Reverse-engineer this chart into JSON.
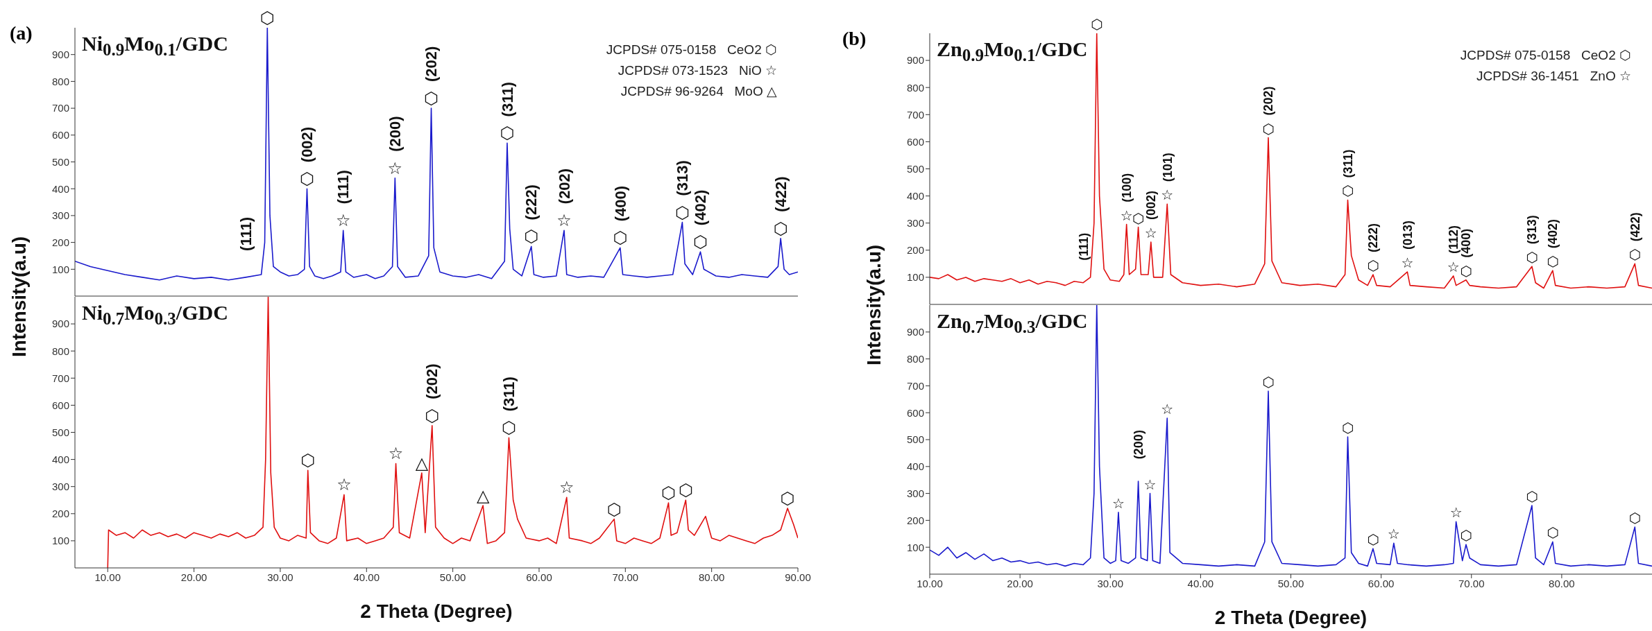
{
  "chart_data": [
    {
      "type": "line",
      "title": "Ni$_{0.9}$Mo$_{0.1}$/GDC",
      "ylabel": "Intensity(a.u)",
      "xlim": [
        6.2,
        90
      ],
      "ylim": [
        0,
        1000
      ],
      "yticks": [
        100,
        200,
        300,
        400,
        500,
        600,
        700,
        800,
        900
      ],
      "tick_labels": "y",
      "x": [
        6.2,
        8,
        10,
        12,
        14,
        16,
        18,
        20,
        22,
        24,
        26,
        27.8,
        28.2,
        28.5,
        28.8,
        29.2,
        30,
        31,
        32,
        32.8,
        33.1,
        33.4,
        34,
        35,
        36,
        37,
        37.3,
        37.6,
        38.5,
        40,
        41,
        42,
        43,
        43.3,
        43.6,
        44.5,
        46,
        47.2,
        47.5,
        47.8,
        48.5,
        50,
        51.5,
        53,
        54.5,
        56,
        56.3,
        56.6,
        57,
        58,
        59.1,
        59.4,
        60.5,
        62,
        62.9,
        63.2,
        64.5,
        66,
        67.5,
        69.4,
        69.7,
        71,
        72.5,
        74,
        75.5,
        76.6,
        76.9,
        77.8,
        78.7,
        79.1,
        80.5,
        82,
        83.5,
        85,
        86.5,
        87.7,
        88,
        88.4,
        89,
        90
      ],
      "series": [
        {
          "color": "#1a1acc",
          "values": [
            130,
            110,
            95,
            80,
            70,
            60,
            75,
            65,
            70,
            60,
            70,
            80,
            200,
            1000,
            300,
            110,
            90,
            75,
            80,
            100,
            400,
            110,
            75,
            65,
            75,
            90,
            245,
            90,
            70,
            80,
            65,
            75,
            110,
            440,
            110,
            70,
            75,
            150,
            700,
            180,
            90,
            75,
            70,
            80,
            65,
            130,
            570,
            250,
            100,
            75,
            185,
            80,
            70,
            75,
            245,
            80,
            70,
            75,
            70,
            180,
            80,
            75,
            70,
            75,
            80,
            275,
            120,
            80,
            165,
            100,
            75,
            70,
            80,
            75,
            70,
            110,
            215,
            100,
            80,
            90
          ]
        }
      ],
      "annotations": [
        "(a)",
        "JCPDS# 075-0158   CeO2 ⬡",
        "JCPDS# 073-1523   NiO ☆",
        "JCPDS# 96-9264   MoO △",
        {
          "text": "⬡",
          "x": 28.5,
          "y": 1000
        },
        {
          "text": "(111)",
          "x": 26,
          "y": 70
        },
        {
          "text": "⬡",
          "x": 33.1,
          "y": 400
        },
        {
          "text": "(002)",
          "x": 33.1,
          "y": 400
        },
        {
          "text": "☆",
          "x": 37.3,
          "y": 245
        },
        {
          "text": "(111)",
          "x": 37.3,
          "y": 245
        },
        {
          "text": "☆",
          "x": 43.3,
          "y": 440
        },
        {
          "text": "(200)",
          "x": 43.3,
          "y": 440
        },
        {
          "text": "⬡",
          "x": 47.5,
          "y": 700
        },
        {
          "text": "(202)",
          "x": 47.5,
          "y": 700
        },
        {
          "text": "⬡",
          "x": 56.3,
          "y": 570
        },
        {
          "text": "(311)",
          "x": 56.3,
          "y": 570
        },
        {
          "text": "⬡",
          "x": 59.1,
          "y": 185
        },
        {
          "text": "(222)",
          "x": 59.1,
          "y": 185
        },
        {
          "text": "☆",
          "x": 62.9,
          "y": 245
        },
        {
          "text": "(202)",
          "x": 62.9,
          "y": 245
        },
        {
          "text": "⬡",
          "x": 69.4,
          "y": 180
        },
        {
          "text": "(400)",
          "x": 69.4,
          "y": 180
        },
        {
          "text": "⬡",
          "x": 76.6,
          "y": 275
        },
        {
          "text": "(313)",
          "x": 76.6,
          "y": 275
        },
        {
          "text": "⬡",
          "x": 78.7,
          "y": 165
        },
        {
          "text": "(402)",
          "x": 78.7,
          "y": 165
        },
        {
          "text": "⬡",
          "x": 88,
          "y": 215
        },
        {
          "text": "(422)",
          "x": 88,
          "y": 215
        }
      ]
    },
    {
      "type": "line",
      "title": "Ni$_{0.7}$Mo$_{0.3}$/GDC",
      "xlabel": "2 Theta (Degree)",
      "xlim": [
        6.2,
        90
      ],
      "xticks": [
        {
          "value": 10,
          "label": "10.00"
        },
        {
          "value": 20,
          "label": "20.00"
        },
        {
          "value": 30,
          "label": "30.00"
        },
        {
          "value": 40,
          "label": "40.00"
        },
        {
          "value": 50,
          "label": "50.00"
        },
        {
          "value": 60,
          "label": "60.00"
        },
        {
          "value": 70,
          "label": "70.00"
        },
        {
          "value": 80,
          "label": "80.00"
        },
        {
          "value": 90,
          "label": "90.00"
        }
      ],
      "ylim": [
        0,
        1000
      ],
      "yticks": [
        100,
        200,
        300,
        400,
        500,
        600,
        700,
        800,
        900
      ],
      "x": [
        10,
        10.1,
        11,
        12,
        13,
        14,
        15,
        16,
        17,
        18,
        19,
        20,
        21,
        22,
        23,
        24,
        25,
        26,
        27,
        28,
        28.3,
        28.6,
        28.9,
        29.3,
        30,
        31,
        32,
        33,
        33.2,
        33.5,
        34.5,
        35.5,
        36.5,
        37.4,
        37.7,
        39,
        40,
        41,
        42,
        43.1,
        43.4,
        43.8,
        45,
        46.4,
        46.8,
        47.6,
        48,
        49,
        50,
        51,
        52,
        53.5,
        54,
        55,
        56,
        56.5,
        57,
        57.5,
        58.5,
        60,
        61,
        62,
        63.2,
        63.5,
        65,
        66,
        67,
        68.7,
        69,
        70,
        71,
        72,
        73,
        74,
        75,
        75.3,
        76,
        77,
        77.3,
        78,
        79.3,
        80,
        81,
        82,
        83,
        84,
        85,
        86,
        87,
        88,
        88.8,
        89.5,
        90
      ],
      "series": [
        {
          "color": "#e01010",
          "values": [
            0,
            140,
            120,
            130,
            110,
            140,
            120,
            130,
            115,
            125,
            110,
            130,
            120,
            110,
            125,
            115,
            130,
            110,
            120,
            150,
            400,
            1000,
            350,
            150,
            110,
            100,
            120,
            110,
            360,
            130,
            100,
            90,
            110,
            270,
            100,
            110,
            90,
            100,
            110,
            150,
            385,
            130,
            110,
            350,
            130,
            525,
            150,
            110,
            90,
            110,
            100,
            230,
            90,
            100,
            130,
            480,
            250,
            180,
            110,
            100,
            110,
            90,
            260,
            110,
            100,
            90,
            110,
            180,
            100,
            90,
            110,
            100,
            90,
            110,
            240,
            120,
            130,
            250,
            140,
            120,
            190,
            110,
            100,
            120,
            110,
            100,
            90,
            110,
            120,
            140,
            220,
            160,
            110
          ]
        }
      ],
      "annotations": [
        {
          "text": "⬡",
          "x": 33.2,
          "y": 360
        },
        {
          "text": "☆",
          "x": 37.4,
          "y": 270
        },
        {
          "text": "☆",
          "x": 43.4,
          "y": 385
        },
        {
          "text": "△",
          "x": 46.4,
          "y": 350
        },
        {
          "text": "⬡",
          "x": 47.6,
          "y": 525
        },
        {
          "text": "(202)",
          "x": 47.6,
          "y": 525
        },
        {
          "text": "△",
          "x": 53.5,
          "y": 230
        },
        {
          "text": "⬡",
          "x": 56.5,
          "y": 480
        },
        {
          "text": "(311)",
          "x": 56.5,
          "y": 480
        },
        {
          "text": "☆",
          "x": 63.2,
          "y": 260
        },
        {
          "text": "⬡",
          "x": 68.7,
          "y": 180
        },
        {
          "text": "⬡",
          "x": 75,
          "y": 240
        },
        {
          "text": "⬡",
          "x": 77,
          "y": 250
        },
        {
          "text": "⬡",
          "x": 88.8,
          "y": 220
        }
      ]
    },
    {
      "type": "line",
      "title": "Zn$_{0.9}$Mo$_{0.1}$/GDC",
      "ylabel": "Intensity(a.u)",
      "xlim": [
        10,
        90
      ],
      "ylim": [
        0,
        1000
      ],
      "yticks": [
        100,
        200,
        300,
        400,
        500,
        600,
        700,
        800,
        900
      ],
      "tick_labels": "y",
      "x": [
        10,
        11,
        12,
        13,
        14,
        15,
        16,
        17,
        18,
        19,
        20,
        21,
        22,
        23,
        24,
        25,
        26,
        27,
        27.8,
        28.2,
        28.5,
        28.8,
        29.3,
        30,
        31,
        31.5,
        31.8,
        32.1,
        32.8,
        33.1,
        33.4,
        34.2,
        34.5,
        34.8,
        35.8,
        36.3,
        36.7,
        38,
        40,
        42,
        44,
        46,
        47.1,
        47.5,
        47.9,
        49,
        51,
        53,
        55,
        56,
        56.3,
        56.7,
        57.5,
        58.5,
        59.1,
        59.5,
        61,
        62.9,
        63.2,
        65,
        67,
        68,
        68.3,
        69.4,
        69.8,
        71,
        73,
        75,
        76.7,
        77.1,
        78,
        79,
        79.3,
        81,
        83,
        85,
        87,
        88.1,
        88.5,
        90
      ],
      "series": [
        {
          "color": "#e01010",
          "values": [
            100,
            95,
            110,
            90,
            100,
            85,
            95,
            90,
            85,
            95,
            80,
            90,
            75,
            85,
            80,
            70,
            85,
            80,
            100,
            300,
            1000,
            400,
            130,
            90,
            85,
            110,
            295,
            110,
            130,
            285,
            110,
            110,
            230,
            100,
            100,
            370,
            110,
            80,
            70,
            75,
            65,
            75,
            150,
            615,
            160,
            80,
            70,
            75,
            65,
            110,
            385,
            180,
            90,
            70,
            110,
            70,
            65,
            120,
            70,
            65,
            60,
            105,
            70,
            90,
            70,
            65,
            60,
            65,
            140,
            80,
            60,
            125,
            70,
            60,
            65,
            60,
            65,
            150,
            70,
            60
          ]
        }
      ],
      "annotations": [
        "(b)",
        "JCPDS# 075-0158   CeO2 ⬡",
        "JCPDS# 36-1451   ZnO ☆",
        {
          "text": "⬡",
          "x": 28.5,
          "y": 1000
        },
        {
          "text": "(111)",
          "x": 27,
          "y": 80
        },
        {
          "text": "☆",
          "x": 31.8,
          "y": 295
        },
        {
          "text": "(100)",
          "x": 31.8,
          "y": 295
        },
        {
          "text": "⬡",
          "x": 33.1,
          "y": 285
        },
        {
          "text": "☆",
          "x": 34.5,
          "y": 230
        },
        {
          "text": "(002)",
          "x": 34.5,
          "y": 230
        },
        {
          "text": "☆",
          "x": 36.3,
          "y": 370
        },
        {
          "text": "(101)",
          "x": 36.3,
          "y": 370
        },
        {
          "text": "⬡",
          "x": 47.5,
          "y": 615
        },
        {
          "text": "(202)",
          "x": 47.5,
          "y": 615
        },
        {
          "text": "⬡",
          "x": 56.3,
          "y": 385
        },
        {
          "text": "(311)",
          "x": 56.3,
          "y": 385
        },
        {
          "text": "⬡",
          "x": 59.1,
          "y": 110
        },
        {
          "text": "(222)",
          "x": 59.1,
          "y": 110
        },
        {
          "text": "☆",
          "x": 62.9,
          "y": 120
        },
        {
          "text": "(013)",
          "x": 62.9,
          "y": 120
        },
        {
          "text": "☆",
          "x": 68,
          "y": 105
        },
        {
          "text": "(112)",
          "x": 68,
          "y": 105
        },
        {
          "text": "⬡",
          "x": 69.4,
          "y": 90
        },
        {
          "text": "(400)",
          "x": 69.4,
          "y": 90
        },
        {
          "text": "⬡",
          "x": 76.7,
          "y": 140
        },
        {
          "text": "(313)",
          "x": 76.7,
          "y": 140
        },
        {
          "text": "⬡",
          "x": 79,
          "y": 125
        },
        {
          "text": "(402)",
          "x": 79,
          "y": 125
        },
        {
          "text": "⬡",
          "x": 88.1,
          "y": 150
        },
        {
          "text": "(422)",
          "x": 88.1,
          "y": 150
        }
      ]
    },
    {
      "type": "line",
      "title": "Zn$_{0.7}$Mo$_{0.3}$/GDC",
      "xlabel": "2 Theta (Degree)",
      "xlim": [
        10,
        90
      ],
      "xticks": [
        {
          "value": 10,
          "label": "10.00"
        },
        {
          "value": 20,
          "label": "20.00"
        },
        {
          "value": 30,
          "label": "30.00"
        },
        {
          "value": 40,
          "label": "40.00"
        },
        {
          "value": 50,
          "label": "50.00"
        },
        {
          "value": 60,
          "label": "60.00"
        },
        {
          "value": 70,
          "label": "70.00"
        },
        {
          "value": 80,
          "label": "80.00"
        }
      ],
      "ylim": [
        0,
        1000
      ],
      "yticks": [
        100,
        200,
        300,
        400,
        500,
        600,
        700,
        800,
        900
      ],
      "x": [
        10,
        11,
        12,
        13,
        14,
        15,
        16,
        17,
        18,
        19,
        20,
        21,
        22,
        23,
        24,
        25,
        26,
        27,
        27.8,
        28.2,
        28.5,
        28.8,
        29.3,
        30,
        30.6,
        30.9,
        31.2,
        32,
        32.8,
        33.1,
        33.4,
        34.1,
        34.4,
        34.7,
        35.5,
        36.3,
        36.6,
        38,
        40,
        42,
        44,
        46,
        47.1,
        47.5,
        47.9,
        49,
        51,
        53,
        55,
        56,
        56.3,
        56.7,
        57.5,
        58.5,
        59.1,
        59.5,
        61,
        61.4,
        61.8,
        63,
        65,
        67,
        68,
        68.3,
        69,
        69.4,
        69.8,
        71,
        73,
        75,
        76.7,
        77.1,
        78,
        79,
        79.3,
        81,
        83,
        85,
        87,
        88.1,
        88.5,
        90
      ],
      "series": [
        {
          "color": "#1a1acc",
          "values": [
            90,
            70,
            100,
            60,
            80,
            55,
            75,
            50,
            60,
            45,
            50,
            40,
            45,
            35,
            40,
            30,
            40,
            35,
            60,
            300,
            1000,
            400,
            60,
            40,
            50,
            230,
            50,
            40,
            60,
            345,
            60,
            50,
            300,
            50,
            40,
            580,
            80,
            40,
            35,
            30,
            35,
            30,
            120,
            680,
            120,
            40,
            35,
            30,
            35,
            60,
            510,
            80,
            40,
            30,
            95,
            40,
            35,
            115,
            40,
            35,
            30,
            35,
            40,
            195,
            50,
            110,
            60,
            35,
            30,
            35,
            255,
            60,
            35,
            120,
            40,
            30,
            35,
            30,
            35,
            175,
            40,
            30
          ]
        }
      ],
      "annotations": [
        {
          "text": "☆",
          "x": 30.9,
          "y": 230
        },
        {
          "text": "(200)",
          "x": 33.1,
          "y": 345
        },
        {
          "text": "☆",
          "x": 34.4,
          "y": 300
        },
        {
          "text": "☆",
          "x": 36.3,
          "y": 580
        },
        {
          "text": "⬡",
          "x": 47.5,
          "y": 680
        },
        {
          "text": "⬡",
          "x": 56.3,
          "y": 510
        },
        {
          "text": "⬡",
          "x": 59.1,
          "y": 95
        },
        {
          "text": "☆",
          "x": 61.4,
          "y": 115
        },
        {
          "text": "☆",
          "x": 68.3,
          "y": 195
        },
        {
          "text": "⬡",
          "x": 69.4,
          "y": 110
        },
        {
          "text": "⬡",
          "x": 76.7,
          "y": 255
        },
        {
          "text": "⬡",
          "x": 79,
          "y": 120
        },
        {
          "text": "⬡",
          "x": 88.1,
          "y": 175
        }
      ]
    }
  ]
}
